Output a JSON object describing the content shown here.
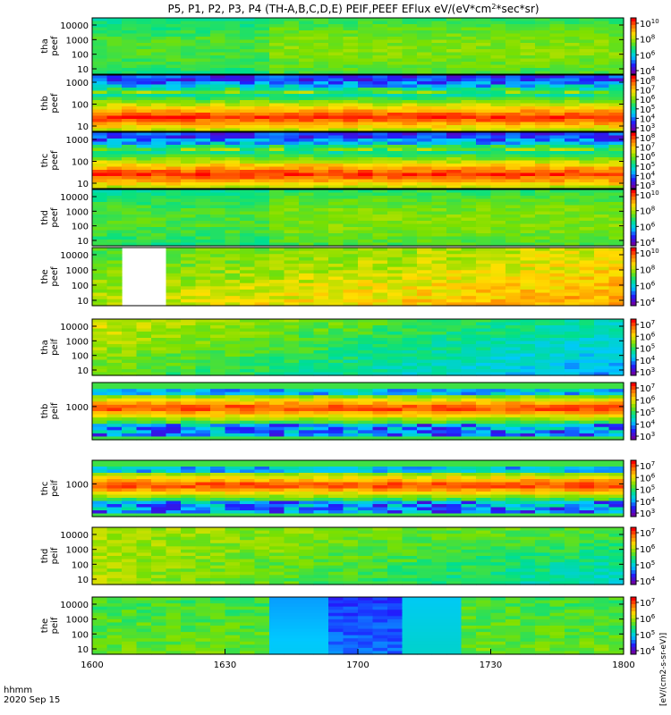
{
  "chart_data": {
    "type": "heatmap",
    "title": "P5, P1, P2, P3, P4 (TH-A,B,C,D,E) PEIF,PEEF EFlux eV/(eV*cm",
    "title_sup": "2",
    "title_end": "*sec*sr)",
    "date_label": "2020 Sep 15",
    "time_label": "hhmm",
    "x_ticks": [
      "1600",
      "1630",
      "1700",
      "1730",
      "1800"
    ],
    "x_range": [
      "16:00",
      "18:00"
    ],
    "colorbar_label": "[eV/(cm2-s-sr-eV)]",
    "colorbar_colors": [
      "#6a00a8",
      "#1f1fff",
      "#00c8ff",
      "#00e08a",
      "#7be000",
      "#ffe000",
      "#ff8000",
      "#ff0000"
    ],
    "panels": [
      {
        "probe": "tha",
        "product": "peef",
        "ylabel": [
          "tha",
          "peef"
        ],
        "y_ticks": [
          "10000",
          "1000",
          "100",
          "10"
        ],
        "color_ticks": [
          "10",
          "10",
          "10",
          "10"
        ],
        "color_exps": [
          "10",
          "8",
          "6",
          "4"
        ],
        "pattern": "electron_quiet"
      },
      {
        "probe": "thb",
        "product": "peef",
        "ylabel": [
          "thb",
          "peef"
        ],
        "y_ticks": [
          "1000",
          "100",
          "10"
        ],
        "color_ticks": [
          "10",
          "10",
          "10",
          "10",
          "10",
          "10"
        ],
        "color_exps": [
          "8",
          "7",
          "6",
          "5",
          "4",
          "3"
        ],
        "pattern": "electron_band"
      },
      {
        "probe": "thc",
        "product": "peef",
        "ylabel": [
          "thc",
          "peef"
        ],
        "y_ticks": [
          "1000",
          "100",
          "10"
        ],
        "color_ticks": [
          "10",
          "10",
          "10",
          "10",
          "10",
          "10"
        ],
        "color_exps": [
          "8",
          "7",
          "6",
          "5",
          "4",
          "3"
        ],
        "pattern": "electron_band"
      },
      {
        "probe": "thd",
        "product": "peef",
        "ylabel": [
          "thd",
          "peef"
        ],
        "y_ticks": [
          "10000",
          "1000",
          "100",
          "10"
        ],
        "color_ticks": [
          "10",
          "10",
          "10",
          "10"
        ],
        "color_exps": [
          "10",
          "8",
          "6",
          "4"
        ],
        "pattern": "electron_quiet"
      },
      {
        "probe": "the",
        "product": "peef",
        "ylabel": [
          "the",
          "peef"
        ],
        "y_ticks": [
          "10000",
          "1000",
          "100",
          "10"
        ],
        "color_ticks": [
          "10",
          "10",
          "10",
          "10"
        ],
        "color_exps": [
          "10",
          "8",
          "6",
          "4"
        ],
        "pattern": "electron_gap"
      },
      {
        "probe": "tha",
        "product": "peif",
        "ylabel": [
          "tha",
          "peif"
        ],
        "y_ticks": [
          "10000",
          "1000",
          "100",
          "10"
        ],
        "color_ticks": [
          "10",
          "10",
          "10",
          "10",
          "10"
        ],
        "color_exps": [
          "7",
          "6",
          "5",
          "4",
          "3"
        ],
        "pattern": "ion_decay"
      },
      {
        "probe": "thb",
        "product": "peif",
        "ylabel": [
          "thb",
          "peif"
        ],
        "y_ticks": [
          "1000"
        ],
        "color_ticks": [
          "10",
          "10",
          "10",
          "10",
          "10"
        ],
        "color_exps": [
          "7",
          "6",
          "5",
          "4",
          "3"
        ],
        "pattern": "ion_band"
      },
      {
        "probe": "thc",
        "product": "peif",
        "ylabel": [
          "thc",
          "peif"
        ],
        "y_ticks": [
          "1000"
        ],
        "color_ticks": [
          "10",
          "10",
          "10",
          "10",
          "10"
        ],
        "color_exps": [
          "7",
          "6",
          "5",
          "4",
          "3"
        ],
        "pattern": "ion_band"
      },
      {
        "probe": "thd",
        "product": "peif",
        "ylabel": [
          "thd",
          "peif"
        ],
        "y_ticks": [
          "10000",
          "1000",
          "100",
          "10"
        ],
        "color_ticks": [
          "10",
          "10",
          "10",
          "10"
        ],
        "color_exps": [
          "7",
          "6",
          "5",
          "4"
        ],
        "pattern": "ion_smooth"
      },
      {
        "probe": "the",
        "product": "peif",
        "ylabel": [
          "the",
          "peif"
        ],
        "y_ticks": [
          "10000",
          "1000",
          "100",
          "10"
        ],
        "color_ticks": [
          "10",
          "10",
          "10",
          "10"
        ],
        "color_exps": [
          "7",
          "6",
          "5",
          "4"
        ],
        "pattern": "ion_mixed"
      }
    ]
  }
}
